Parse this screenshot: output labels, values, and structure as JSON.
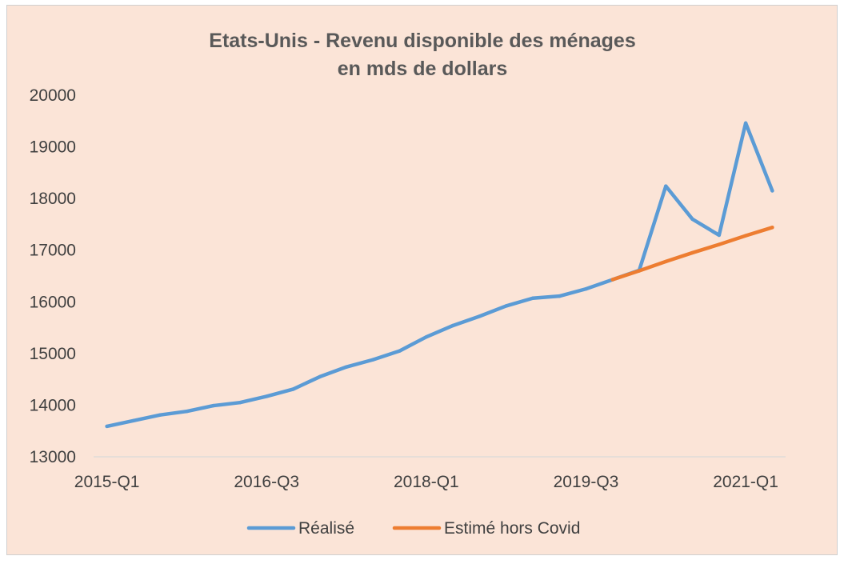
{
  "chart_data": {
    "type": "line",
    "title": "Etats-Unis - Revenu disponible des ménages",
    "subtitle": "en mds de dollars",
    "xlabel": "",
    "ylabel": "",
    "ylim": [
      13000,
      20000
    ],
    "yticks": [
      13000,
      14000,
      15000,
      16000,
      17000,
      18000,
      19000,
      20000
    ],
    "x_tick_labels": [
      "2015-Q1",
      "2016-Q3",
      "2018-Q1",
      "2019-Q3",
      "2021-Q1"
    ],
    "x_tick_indices": [
      0,
      6,
      12,
      18,
      24
    ],
    "categories": [
      "2015-Q1",
      "2015-Q2",
      "2015-Q3",
      "2015-Q4",
      "2016-Q1",
      "2016-Q2",
      "2016-Q3",
      "2016-Q4",
      "2017-Q1",
      "2017-Q2",
      "2017-Q3",
      "2017-Q4",
      "2018-Q1",
      "2018-Q2",
      "2018-Q3",
      "2018-Q4",
      "2019-Q1",
      "2019-Q2",
      "2019-Q3",
      "2019-Q4",
      "2020-Q1",
      "2020-Q2",
      "2020-Q3",
      "2020-Q4",
      "2021-Q1",
      "2021-Q2"
    ],
    "grid": false,
    "legend_position": "bottom",
    "series": [
      {
        "name": "Réalisé",
        "color": "#5b9bd5",
        "values": [
          13590,
          13700,
          13810,
          13880,
          13990,
          14050,
          14170,
          14310,
          14550,
          14740,
          14880,
          15050,
          15320,
          15540,
          15720,
          15920,
          16070,
          16110,
          16250,
          16430,
          16610,
          18240,
          17600,
          17290,
          19460,
          18150
        ]
      },
      {
        "name": "Estimé hors Covid",
        "color": "#ed7d31",
        "values": [
          null,
          null,
          null,
          null,
          null,
          null,
          null,
          null,
          null,
          null,
          null,
          null,
          null,
          null,
          null,
          null,
          null,
          null,
          null,
          16430,
          16600,
          16780,
          16950,
          17110,
          17280,
          17440
        ]
      }
    ]
  }
}
